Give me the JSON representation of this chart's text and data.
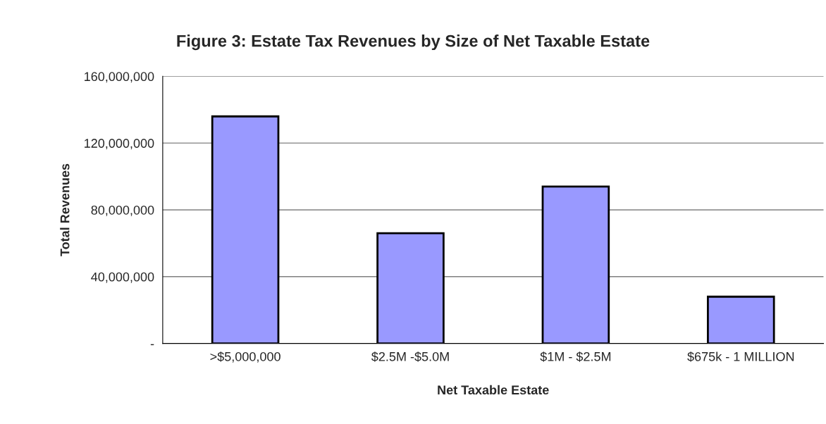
{
  "chart_data": {
    "type": "bar",
    "title": "Figure 3: Estate Tax Revenues by Size of Net Taxable Estate",
    "xlabel": "Net Taxable Estate",
    "ylabel": "Total Revenues",
    "categories": [
      ">$5,000,000",
      "$2.5M -$5.0M",
      "$1M - $2.5M",
      "$675k - 1 MILLION"
    ],
    "values": [
      136000000,
      66000000,
      94000000,
      28000000
    ],
    "color": "#9999ff",
    "ylim": [
      0,
      160000000
    ],
    "yticks": [
      {
        "value": 0,
        "label": "-"
      },
      {
        "value": 40000000,
        "label": "40,000,000"
      },
      {
        "value": 80000000,
        "label": "80,000,000"
      },
      {
        "value": 120000000,
        "label": "120,000,000"
      },
      {
        "value": 160000000,
        "label": "160,000,000"
      }
    ],
    "grid": "y"
  }
}
